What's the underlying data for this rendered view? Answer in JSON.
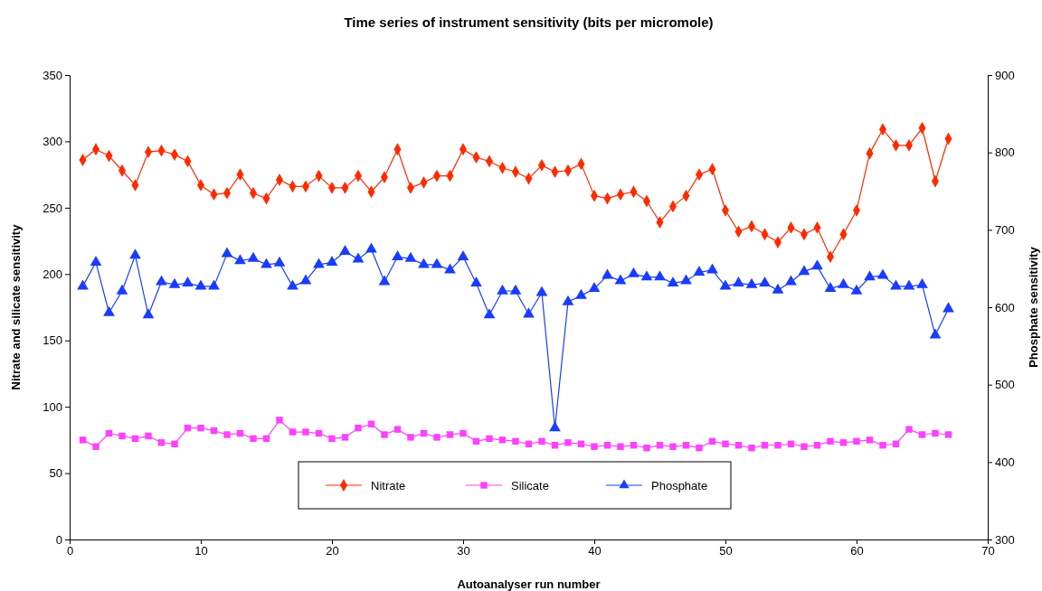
{
  "chart_data": {
    "type": "line",
    "title": "Time series of instrument sensitivity (bits per micromole)",
    "xlabel": "Autoanalyser run number",
    "ylabel": "Nitrate and silicate sensitivity",
    "y2label": "Phosphate sensitivity",
    "x": [
      1,
      2,
      3,
      4,
      5,
      6,
      7,
      8,
      9,
      10,
      11,
      12,
      13,
      14,
      15,
      16,
      17,
      18,
      19,
      20,
      21,
      22,
      23,
      24,
      25,
      26,
      27,
      28,
      29,
      30,
      31,
      32,
      33,
      34,
      35,
      36,
      37,
      38,
      39,
      40,
      41,
      42,
      43,
      44,
      45,
      46,
      47,
      48,
      49,
      50,
      51,
      52,
      53,
      54,
      55,
      56,
      57,
      58,
      59,
      60,
      61,
      62,
      63,
      64,
      65,
      66,
      67
    ],
    "xlim": [
      0,
      70
    ],
    "xticks": [
      0,
      10,
      20,
      30,
      40,
      50,
      60,
      70
    ],
    "ylim": [
      0,
      350
    ],
    "yticks": [
      0,
      50,
      100,
      150,
      200,
      250,
      300,
      350
    ],
    "y2lim": [
      300,
      900
    ],
    "y2ticks": [
      300,
      400,
      500,
      600,
      700,
      800,
      900
    ],
    "grid": false,
    "legend": "bottom",
    "line_style": "solid",
    "series": [
      {
        "name": "Nitrate",
        "color": "#ff2a00",
        "marker": "diamond",
        "values": [
          286,
          294,
          289,
          278,
          267,
          292,
          293,
          290,
          285,
          267,
          260,
          261,
          275,
          261,
          257,
          271,
          266,
          266,
          274,
          265,
          265,
          274,
          262,
          273,
          294,
          265,
          269,
          274,
          274,
          294,
          288,
          285,
          280,
          277,
          272,
          282,
          277,
          278,
          283,
          259,
          257,
          260,
          262,
          255,
          239,
          251,
          259,
          275,
          279,
          248,
          232,
          236,
          230,
          224,
          235,
          230,
          235,
          213,
          230,
          248,
          291,
          309,
          297,
          297,
          310,
          270,
          302
        ]
      },
      {
        "name": "Silicate",
        "color": "#ff40ff",
        "marker": "square",
        "values": [
          75,
          70,
          80,
          78,
          76,
          78,
          73,
          72,
          84,
          84,
          82,
          79,
          80,
          76,
          76,
          90,
          81,
          81,
          80,
          76,
          77,
          84,
          87,
          79,
          83,
          77,
          80,
          77,
          79,
          80,
          74,
          76,
          75,
          74,
          72,
          74,
          71,
          73,
          72,
          70,
          71,
          70,
          71,
          69,
          71,
          70,
          71,
          69,
          74,
          72,
          71,
          69,
          71,
          71,
          72,
          70,
          71,
          74,
          73,
          74,
          75,
          71,
          72,
          83,
          79,
          80,
          79
        ]
      },
      {
        "name": "Phosphate",
        "color": "#1a3cff",
        "marker": "triangle",
        "axis": "y2",
        "values": [
          627,
          658,
          593,
          621,
          667,
          590,
          633,
          629,
          631,
          627,
          627,
          669,
          660,
          663,
          655,
          657,
          627,
          634,
          655,
          658,
          672,
          662,
          675,
          633,
          665,
          663,
          655,
          655,
          648,
          665,
          631,
          590,
          621,
          621,
          591,
          619,
          444,
          607,
          615,
          624,
          641,
          634,
          643,
          639,
          639,
          631,
          634,
          645,
          648,
          627,
          631,
          629,
          631,
          622,
          633,
          646,
          653,
          624,
          629,
          621,
          639,
          641,
          627,
          627,
          629,
          564,
          598
        ]
      }
    ]
  }
}
